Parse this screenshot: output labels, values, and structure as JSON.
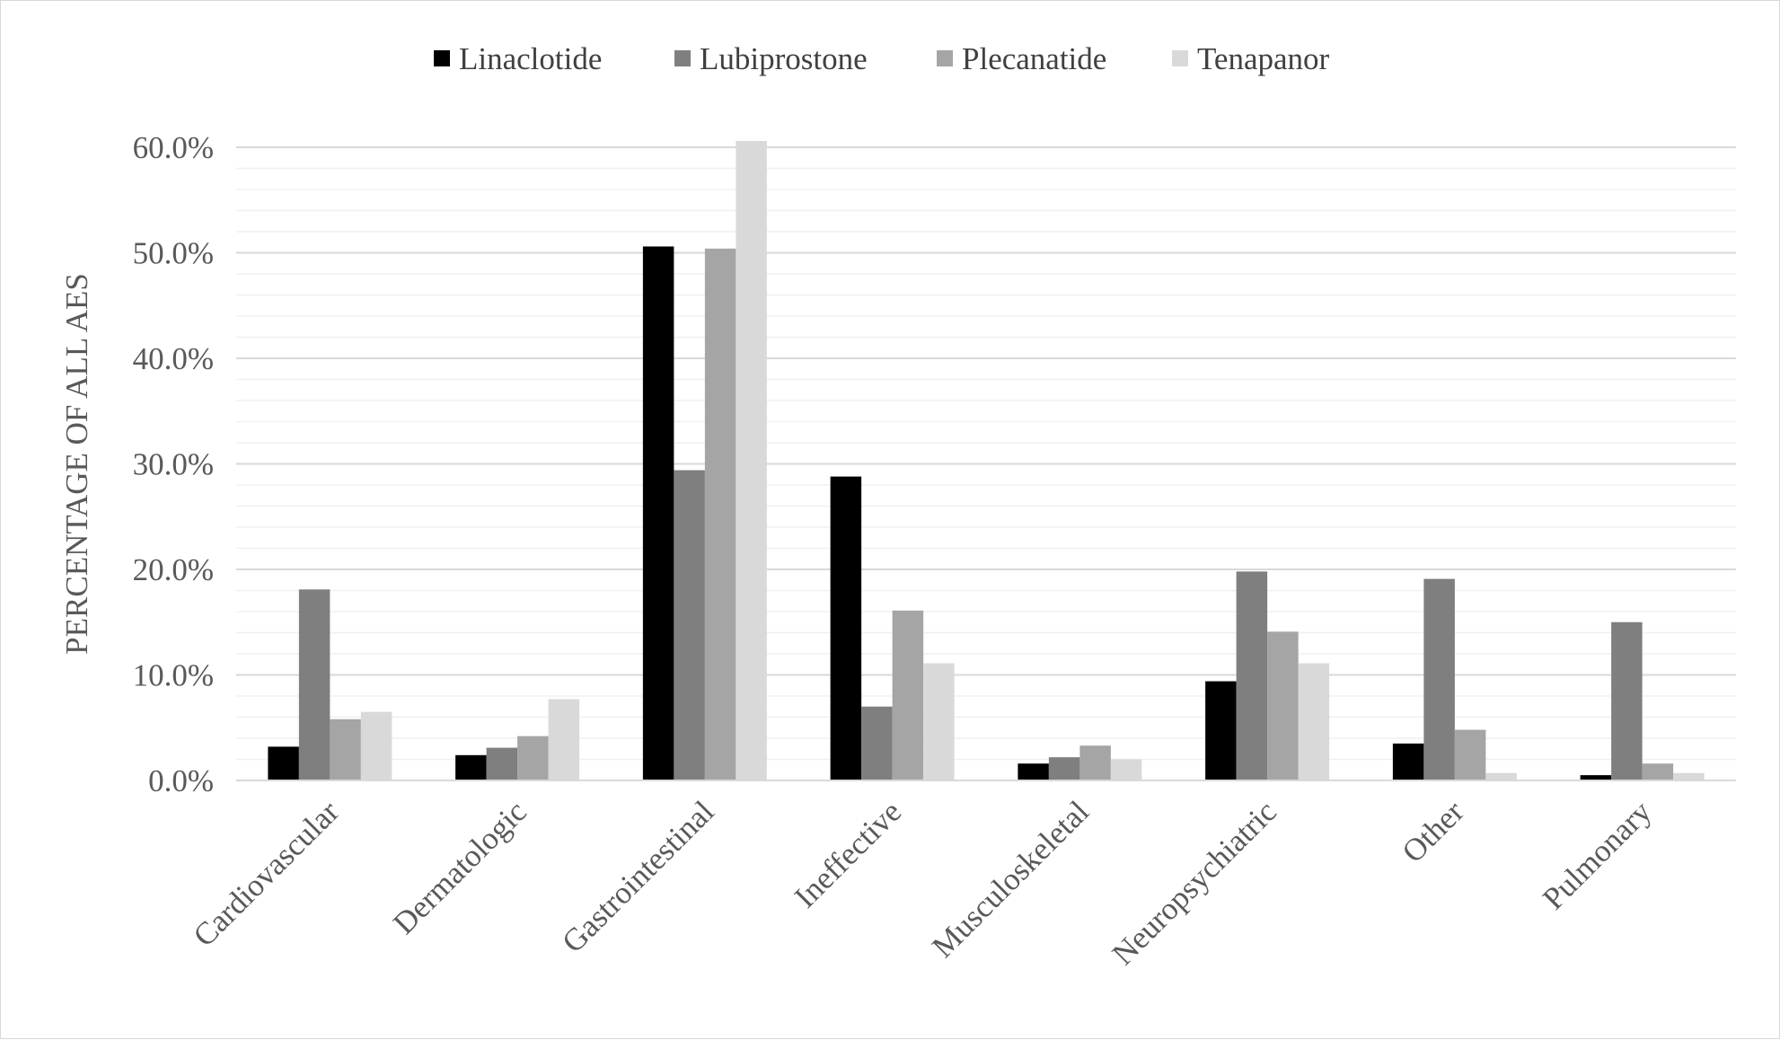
{
  "chart_data": {
    "type": "bar",
    "title": "",
    "xlabel": "",
    "ylabel": "PERCENTAGE OF ALL AES",
    "ylim": [
      0,
      60
    ],
    "y_ticks": [
      "0.0%",
      "10.0%",
      "20.0%",
      "30.0%",
      "40.0%",
      "50.0%",
      "60.0%"
    ],
    "grid": "horizontal major and minor",
    "legend_position": "top-center",
    "categories": [
      "Cardiovascular",
      "Dermatologic",
      "Gastrointestinal",
      "Ineffective",
      "Musculoskeletal",
      "Neuropsychiatric",
      "Other",
      "Pulmonary"
    ],
    "series": [
      {
        "name": "Linaclotide",
        "color": "#000000",
        "values": [
          3.2,
          2.4,
          50.6,
          28.8,
          1.6,
          9.4,
          3.5,
          0.5
        ]
      },
      {
        "name": "Lubiprostone",
        "color": "#7f7f7f",
        "values": [
          18.1,
          3.1,
          29.4,
          7.0,
          2.2,
          19.8,
          19.1,
          15.0
        ]
      },
      {
        "name": "Plecanatide",
        "color": "#a5a5a5",
        "values": [
          5.8,
          4.2,
          50.4,
          16.1,
          3.3,
          14.1,
          4.8,
          1.6
        ]
      },
      {
        "name": "Tenapanor",
        "color": "#d9d9d9",
        "values": [
          6.5,
          7.7,
          60.6,
          11.1,
          2.0,
          11.1,
          0.7,
          0.7
        ]
      }
    ]
  }
}
